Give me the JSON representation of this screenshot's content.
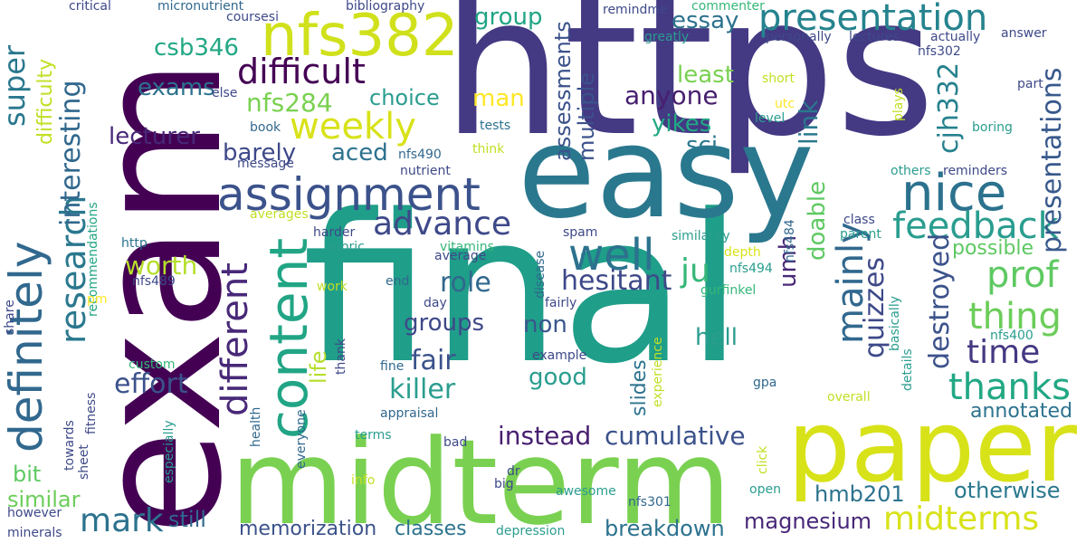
{
  "words": [
    {
      "text": "https",
      "color": "#443983"
    },
    {
      "text": "final",
      "color": "#1f9e89"
    },
    {
      "text": "exam",
      "color": "#440154"
    },
    {
      "text": "midterm",
      "color": "#7ad151"
    },
    {
      "text": "easy",
      "color": "#2a788e"
    },
    {
      "text": "paper",
      "color": "#d8e219"
    },
    {
      "text": "assignment",
      "color": "#3b528b"
    },
    {
      "text": "definitely",
      "color": "#31688e"
    },
    {
      "text": "content",
      "color": "#21a585"
    },
    {
      "text": "nfs382",
      "color": "#d0e11c"
    },
    {
      "text": "presentation",
      "color": "#25838e"
    },
    {
      "text": "nice",
      "color": "#2c728e"
    },
    {
      "text": "difficult",
      "color": "#440154"
    },
    {
      "text": "weekly",
      "color": "#d8e219"
    },
    {
      "text": "feedback",
      "color": "#2a9d8f"
    },
    {
      "text": "advance",
      "color": "#3e4989"
    },
    {
      "text": "research",
      "color": "#2a788e"
    },
    {
      "text": "well",
      "color": "#2c728e"
    },
    {
      "text": "midterms",
      "color": "#d8e219"
    },
    {
      "text": "different",
      "color": "#482878"
    },
    {
      "text": "prof",
      "color": "#5ec962"
    },
    {
      "text": "thing",
      "color": "#6ccd5a"
    },
    {
      "text": "mainly",
      "color": "#31688e"
    },
    {
      "text": "thanks",
      "color": "#22a884"
    },
    {
      "text": "time",
      "color": "#443983"
    },
    {
      "text": "mark",
      "color": "#2c728e"
    },
    {
      "text": "ju",
      "color": "#35b779"
    },
    {
      "text": "super",
      "color": "#2a788e"
    },
    {
      "text": "interesting",
      "color": "#31688e"
    },
    {
      "text": "effort",
      "color": "#3b528b"
    },
    {
      "text": "cumulative",
      "color": "#3b528b"
    },
    {
      "text": "instead",
      "color": "#481f70"
    },
    {
      "text": "hesitant",
      "color": "#3e4989"
    },
    {
      "text": "killer",
      "color": "#2a9d8f"
    },
    {
      "text": "fair",
      "color": "#3b528b"
    },
    {
      "text": "role",
      "color": "#31688e"
    },
    {
      "text": "quizzes",
      "color": "#3e4989"
    },
    {
      "text": "destroyed",
      "color": "#3b528b"
    },
    {
      "text": "cjh332",
      "color": "#26828e"
    },
    {
      "text": "presentations",
      "color": "#38598c"
    },
    {
      "text": "nfs284",
      "color": "#7ad151"
    },
    {
      "text": "anyone",
      "color": "#481f70"
    },
    {
      "text": "group",
      "color": "#21a585"
    },
    {
      "text": "essay",
      "color": "#2c728e"
    },
    {
      "text": "csb346",
      "color": "#22a884"
    },
    {
      "text": "exams",
      "color": "#2c728e"
    },
    {
      "text": "lecturer",
      "color": "#482878"
    },
    {
      "text": "barely",
      "color": "#3e4989"
    },
    {
      "text": "aced",
      "color": "#2c728e"
    },
    {
      "text": "choice",
      "color": "#2a9d8f"
    },
    {
      "text": "man",
      "color": "#fde725"
    },
    {
      "text": "least",
      "color": "#7ad151"
    },
    {
      "text": "yikes",
      "color": "#22a884"
    },
    {
      "text": "sci",
      "color": "#2a788e"
    },
    {
      "text": "link",
      "color": "#2a788e"
    },
    {
      "text": "assessments",
      "color": "#3b528b"
    },
    {
      "text": "multiple",
      "color": "#3b528b"
    },
    {
      "text": "worth",
      "color": "#b5de2b"
    },
    {
      "text": "umh",
      "color": "#482878"
    },
    {
      "text": "doable",
      "color": "#5ec962"
    },
    {
      "text": "groups",
      "color": "#3e4989"
    },
    {
      "text": "non",
      "color": "#39568c"
    },
    {
      "text": "hell",
      "color": "#2a9d8f"
    },
    {
      "text": "good",
      "color": "#2a9d8f"
    },
    {
      "text": "life",
      "color": "#b5de2b"
    },
    {
      "text": "possible",
      "color": "#5ec962"
    },
    {
      "text": "annotated",
      "color": "#2c728e"
    },
    {
      "text": "otherwise",
      "color": "#2a788e"
    },
    {
      "text": "breakdown",
      "color": "#2c728e"
    },
    {
      "text": "magnesium",
      "color": "#482878"
    },
    {
      "text": "hmb201",
      "color": "#2c728e"
    },
    {
      "text": "classes",
      "color": "#2c728e"
    },
    {
      "text": "memorization",
      "color": "#3b528b"
    },
    {
      "text": "still",
      "color": "#31688e"
    },
    {
      "text": "similar",
      "color": "#6ccd5a"
    },
    {
      "text": "bit",
      "color": "#5ec962"
    },
    {
      "text": "slides",
      "color": "#2c728e"
    },
    {
      "text": "difficulty",
      "color": "#c2df23"
    },
    {
      "text": "critical",
      "color": "#3e4989"
    },
    {
      "text": "micronutrient",
      "color": "#31688e"
    },
    {
      "text": "coursesi",
      "color": "#3e4989"
    },
    {
      "text": "bibliography",
      "color": "#3e4989"
    },
    {
      "text": "remindme",
      "color": "#3e4989"
    },
    {
      "text": "commenter",
      "color": "#35b779"
    },
    {
      "text": "greatly",
      "color": "#2a9d8f"
    },
    {
      "text": "personally",
      "color": "#3e4989"
    },
    {
      "text": "lectures",
      "color": "#3e4989"
    },
    {
      "text": "actually",
      "color": "#3e4989"
    },
    {
      "text": "answer",
      "color": "#3e4989"
    },
    {
      "text": "nfs302",
      "color": "#3e4989"
    },
    {
      "text": "short",
      "color": "#c2df23"
    },
    {
      "text": "part",
      "color": "#3e4989"
    },
    {
      "text": "utc",
      "color": "#fde725"
    },
    {
      "text": "level",
      "color": "#2a9d8f"
    },
    {
      "text": "plays",
      "color": "#c2df23"
    },
    {
      "text": "boring",
      "color": "#2a9d8f"
    },
    {
      "text": "others",
      "color": "#2a9d8f"
    },
    {
      "text": "reminders",
      "color": "#3e4989"
    },
    {
      "text": "else",
      "color": "#3e4989"
    },
    {
      "text": "book",
      "color": "#31688e"
    },
    {
      "text": "tests",
      "color": "#2c728e"
    },
    {
      "text": "think",
      "color": "#c2df23"
    },
    {
      "text": "message",
      "color": "#3e4989"
    },
    {
      "text": "nfs490",
      "color": "#31688e"
    },
    {
      "text": "nutrient",
      "color": "#3e4989"
    },
    {
      "text": "averages",
      "color": "#c2df23"
    },
    {
      "text": "harder",
      "color": "#3e4989"
    },
    {
      "text": "rubric",
      "color": "#2a9d8f"
    },
    {
      "text": "vitamins",
      "color": "#35b779"
    },
    {
      "text": "average",
      "color": "#3e4989"
    },
    {
      "text": "http",
      "color": "#2c728e"
    },
    {
      "text": "recommendations",
      "color": "#21a585"
    },
    {
      "text": "nfs489",
      "color": "#3e4989"
    },
    {
      "text": "disease",
      "color": "#31688e"
    },
    {
      "text": "spam",
      "color": "#3e4989"
    },
    {
      "text": "similarity",
      "color": "#2a9d8f"
    },
    {
      "text": "depth",
      "color": "#d8e219"
    },
    {
      "text": "nfs484",
      "color": "#31688e"
    },
    {
      "text": "class",
      "color": "#3e4989"
    },
    {
      "text": "parent",
      "color": "#2a9d8f"
    },
    {
      "text": "nfs494",
      "color": "#2a9d8f"
    },
    {
      "text": "gurfinkel",
      "color": "#35b779"
    },
    {
      "text": "end",
      "color": "#31688e"
    },
    {
      "text": "work",
      "color": "#c2df23"
    },
    {
      "text": "day",
      "color": "#3e4989"
    },
    {
      "text": "fairly",
      "color": "#3e4989"
    },
    {
      "text": "basically",
      "color": "#2a9d8f"
    },
    {
      "text": "nfs400",
      "color": "#2a9d8f"
    },
    {
      "text": "pm",
      "color": "#fde725"
    },
    {
      "text": "share",
      "color": "#3e4989"
    },
    {
      "text": "custom",
      "color": "#35b779"
    },
    {
      "text": "thank",
      "color": "#3e4989"
    },
    {
      "text": "fine",
      "color": "#31688e"
    },
    {
      "text": "example",
      "color": "#3e4989"
    },
    {
      "text": "experience",
      "color": "#c2df23"
    },
    {
      "text": "details",
      "color": "#2a9d8f"
    },
    {
      "text": "gpa",
      "color": "#31688e"
    },
    {
      "text": "overall",
      "color": "#c2df23"
    },
    {
      "text": "fitness",
      "color": "#3e4989"
    },
    {
      "text": "health",
      "color": "#31688e"
    },
    {
      "text": "everyone",
      "color": "#31688e"
    },
    {
      "text": "appraisal",
      "color": "#31688e"
    },
    {
      "text": "terms",
      "color": "#2a9d8f"
    },
    {
      "text": "towards",
      "color": "#3e4989"
    },
    {
      "text": "sheet",
      "color": "#3e4989"
    },
    {
      "text": "especially",
      "color": "#2a9d8f"
    },
    {
      "text": "bad",
      "color": "#3e4989"
    },
    {
      "text": "click",
      "color": "#c2df23"
    },
    {
      "text": "dr",
      "color": "#3e4989"
    },
    {
      "text": "info",
      "color": "#c2df23"
    },
    {
      "text": "big",
      "color": "#3e4989"
    },
    {
      "text": "awesome",
      "color": "#2a9d8f"
    },
    {
      "text": "open",
      "color": "#2a9d8f"
    },
    {
      "text": "nfs301",
      "color": "#31688e"
    },
    {
      "text": "however",
      "color": "#3e4989"
    },
    {
      "text": "depression",
      "color": "#2a9d8f"
    },
    {
      "text": "minerals",
      "color": "#3e4989"
    }
  ]
}
